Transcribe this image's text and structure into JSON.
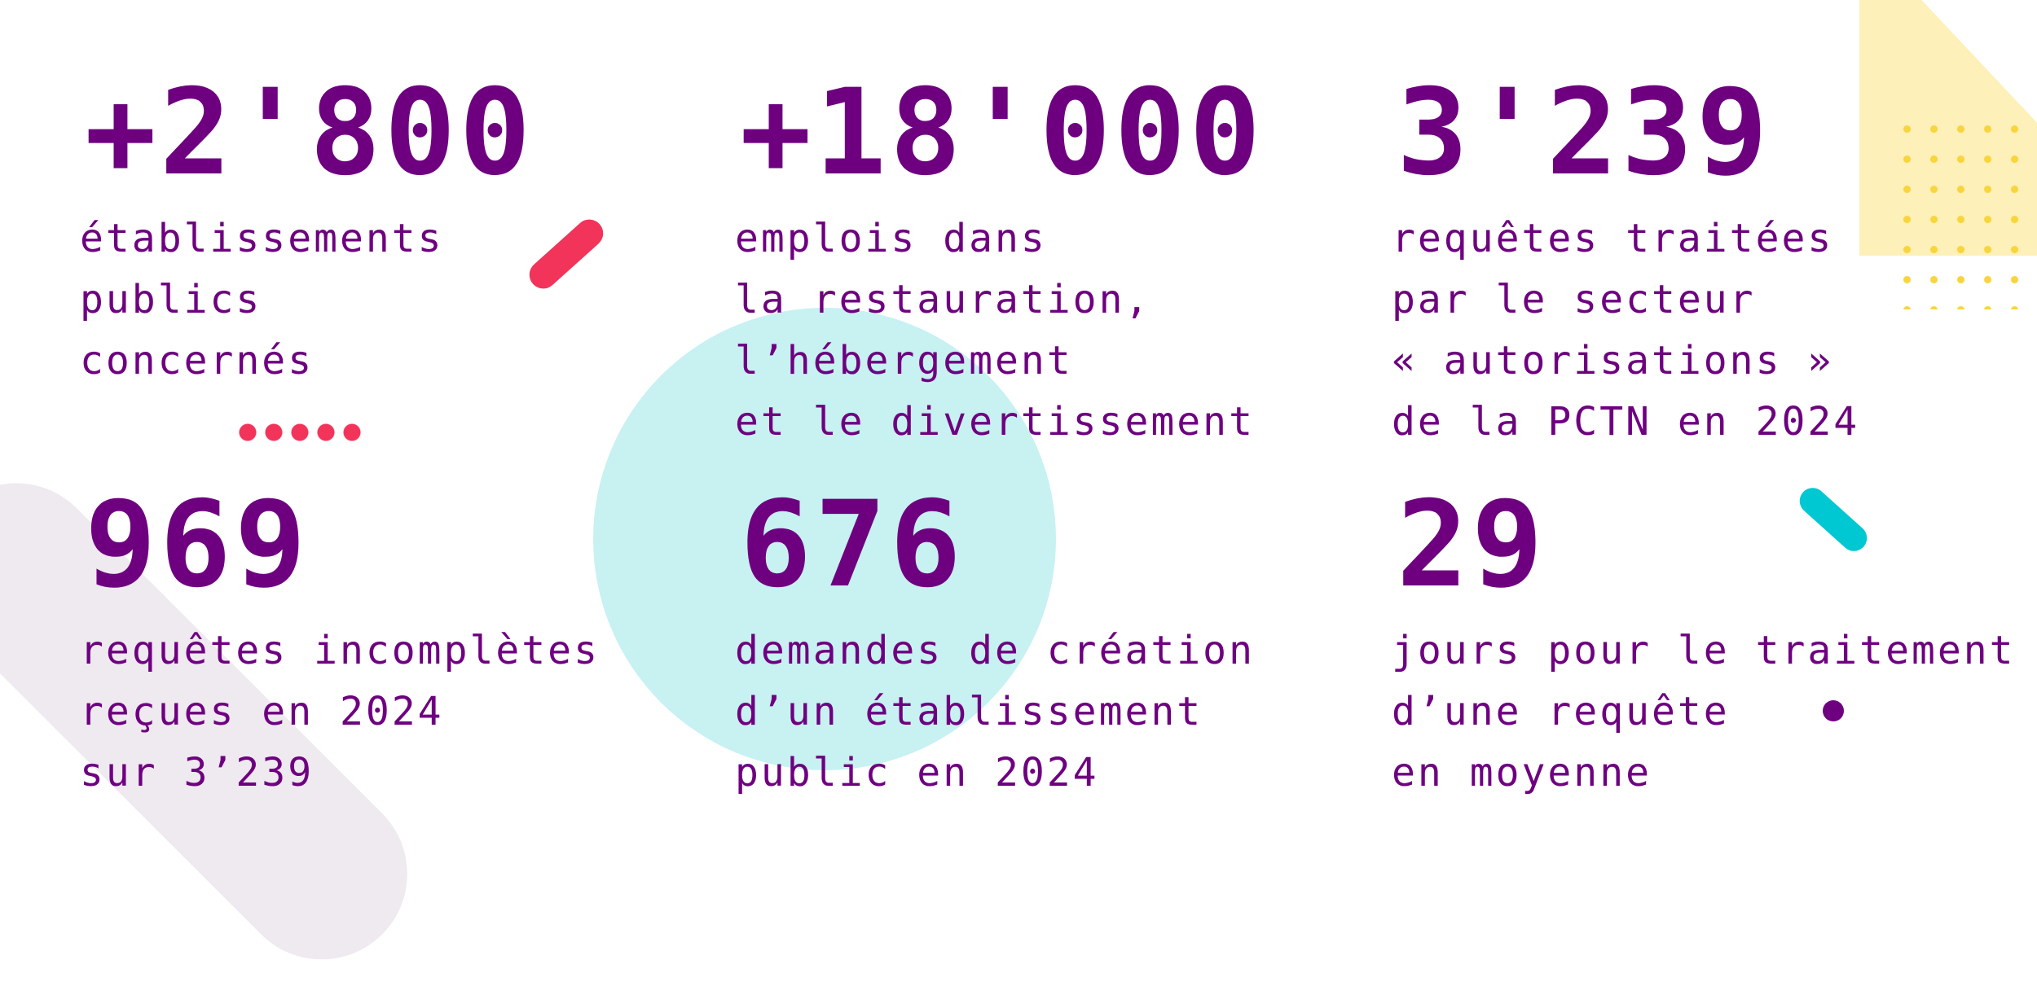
{
  "stats": [
    {
      "number": "+2'800",
      "lines": [
        "établissements",
        "publics",
        "concernés"
      ]
    },
    {
      "number": "+18'000",
      "lines": [
        "emplois dans",
        "la restauration,",
        "l’hébergement",
        "et le divertissement"
      ]
    },
    {
      "number": "3'239",
      "lines": [
        "requêtes traitées",
        "par le secteur",
        "« autorisations »",
        "de la PCTN en 2024"
      ]
    },
    {
      "number": "969",
      "lines": [
        "requêtes incomplètes",
        "reçues en 2024",
        "sur 3’239"
      ]
    },
    {
      "number": "676",
      "lines": [
        "demandes de création",
        "d’un établissement",
        "public en 2024"
      ]
    },
    {
      "number": "29",
      "lines": [
        "jours pour le traitement",
        "d’une requête",
        "en moyenne"
      ]
    }
  ],
  "colors": {
    "text": "#6e0080",
    "accent_red": "#f2335a",
    "accent_cyan": "#00c8d2",
    "circle_cyan": "#c8f1f2",
    "pill_lilac": "#efe9f0",
    "triangle_yellow": "#fdf0b8",
    "dots_yellow": "#f8d53c"
  }
}
